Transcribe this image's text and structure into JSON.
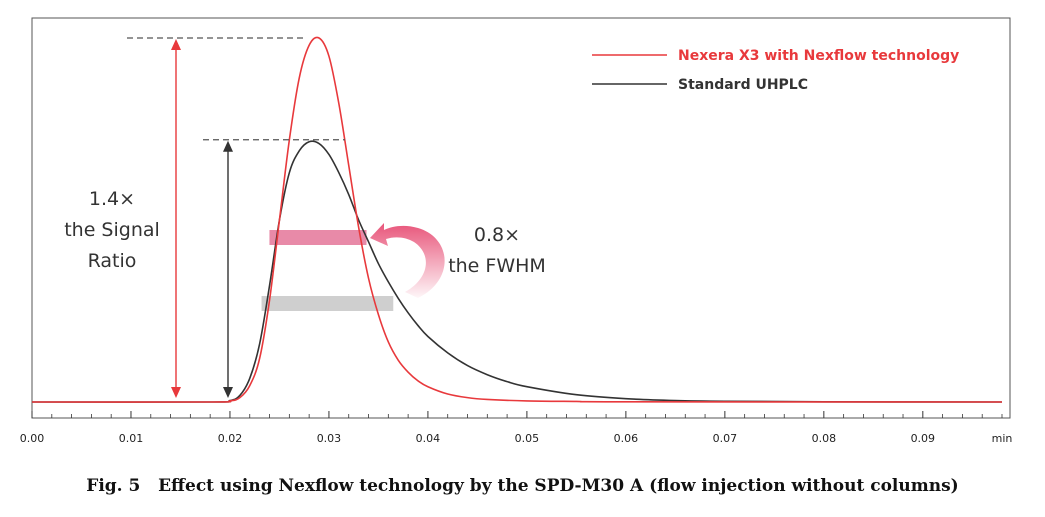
{
  "chart_data": {
    "type": "line",
    "xlabel": "min",
    "xlim": [
      0.0,
      0.098
    ],
    "ylim": [
      0,
      1.05
    ],
    "grid": false,
    "legend_placement": "top-right",
    "x_ticks": [
      0.0,
      0.01,
      0.02,
      0.03,
      0.04,
      0.05,
      0.06,
      0.07,
      0.08,
      0.09
    ],
    "x_tick_labels": [
      "0.00",
      "0.01",
      "0.02",
      "0.03",
      "0.04",
      "0.05",
      "0.06",
      "0.07",
      "0.08",
      "0.09"
    ],
    "series": [
      {
        "name": "Nexera X3 with Nexflow technology",
        "color": "#e8393c",
        "x": [
          0.0,
          0.018,
          0.02,
          0.021,
          0.022,
          0.023,
          0.024,
          0.025,
          0.026,
          0.027,
          0.028,
          0.029,
          0.03,
          0.031,
          0.032,
          0.033,
          0.034,
          0.035,
          0.036,
          0.037,
          0.038,
          0.039,
          0.04,
          0.042,
          0.044,
          0.046,
          0.05,
          0.055,
          0.06,
          0.098
        ],
        "y": [
          0.0,
          0.0,
          0.003,
          0.012,
          0.045,
          0.12,
          0.28,
          0.5,
          0.72,
          0.89,
          0.98,
          1.0,
          0.95,
          0.82,
          0.65,
          0.48,
          0.34,
          0.24,
          0.165,
          0.115,
          0.082,
          0.058,
          0.042,
          0.022,
          0.012,
          0.007,
          0.003,
          0.0015,
          0.0005,
          0.0
        ]
      },
      {
        "name": "Standard UHPLC",
        "color": "#333333",
        "x": [
          0.0,
          0.018,
          0.02,
          0.021,
          0.022,
          0.023,
          0.024,
          0.025,
          0.026,
          0.027,
          0.028,
          0.029,
          0.03,
          0.031,
          0.032,
          0.033,
          0.034,
          0.035,
          0.036,
          0.037,
          0.038,
          0.039,
          0.04,
          0.042,
          0.044,
          0.046,
          0.048,
          0.05,
          0.055,
          0.06,
          0.065,
          0.07,
          0.08,
          0.098
        ],
        "y": [
          0.0,
          0.0,
          0.004,
          0.018,
          0.065,
          0.16,
          0.32,
          0.5,
          0.63,
          0.69,
          0.715,
          0.71,
          0.68,
          0.63,
          0.57,
          0.5,
          0.44,
          0.38,
          0.33,
          0.285,
          0.245,
          0.21,
          0.18,
          0.135,
          0.1,
          0.075,
          0.056,
          0.042,
          0.02,
          0.009,
          0.004,
          0.002,
          0.0005,
          0.0
        ]
      }
    ],
    "annotations": {
      "signal_ratio": [
        "1.4×",
        "the Signal",
        "Ratio"
      ],
      "fwhm": [
        "0.8×",
        "the FWHM"
      ],
      "nexera_peak": 1.0,
      "standard_peak": 0.715,
      "nexera_fwhm": [
        0.025,
        0.034
      ],
      "standard_fwhm": [
        0.024,
        0.0365
      ]
    }
  },
  "caption": "Fig. 5   Effect using Nexflow technology by the SPD-M30 A (flow injection without columns)",
  "colors": {
    "red": "#e8393c",
    "black": "#333333",
    "pink_bar": "#e88aa8",
    "gray_bar": "#cfcfcf",
    "arrow_pink": "#e8557a"
  }
}
